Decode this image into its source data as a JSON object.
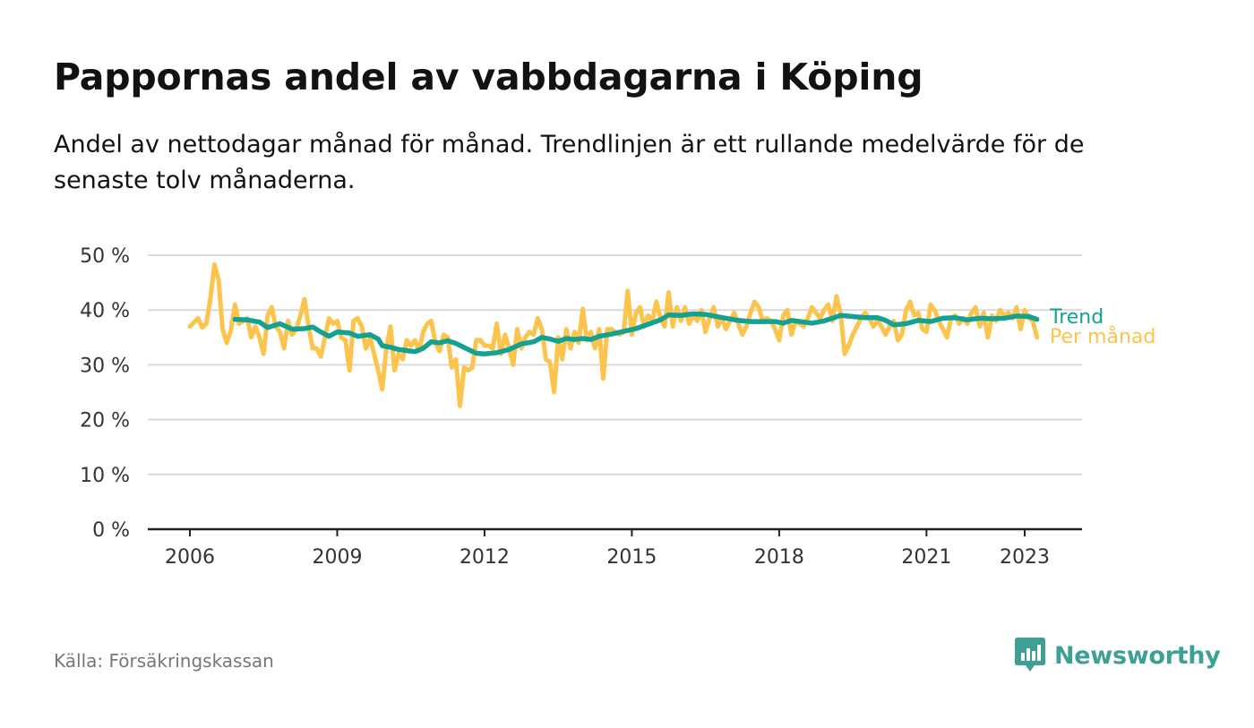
{
  "title": "Pappornas andel av vabbdagarna i Köping",
  "subtitle": "Andel av nettodagar månad för månad. Trendlinjen är ett rullande medelvärde för de senaste tolv månaderna.",
  "source": "Källa: Försäkringskassan",
  "brand": "Newsworthy",
  "colors": {
    "monthly": "#fcc44c",
    "trend": "#15a192",
    "grid": "#d9d9d9",
    "axis": "#222222",
    "brand": "#3e9f94"
  },
  "chart_data": {
    "type": "line",
    "title": "Pappornas andel av vabbdagarna i Köping",
    "xlabel": "",
    "ylabel": "",
    "ylim": [
      0,
      50
    ],
    "yticks": [
      0,
      10,
      20,
      30,
      40,
      50
    ],
    "ytick_labels": [
      "0 %",
      "10 %",
      "20 %",
      "30 %",
      "40 %",
      "50 %"
    ],
    "xlim": [
      "2005-10",
      "2024-02"
    ],
    "xticks": [
      "2006-01",
      "2009-01",
      "2012-01",
      "2015-01",
      "2018-01",
      "2021-01",
      "2023-01"
    ],
    "xtick_labels": [
      "2006",
      "2009",
      "2012",
      "2015",
      "2018",
      "2021",
      "2023"
    ],
    "grid": true,
    "legend": "right-end labels",
    "series": [
      {
        "name": "Per månad",
        "color": "#fcc44c",
        "points": [
          [
            "2006-01",
            37
          ],
          [
            "2006-03",
            38.5
          ],
          [
            "2006-04",
            36.8
          ],
          [
            "2006-05",
            37.5
          ],
          [
            "2006-06",
            42
          ],
          [
            "2006-07",
            48.3
          ],
          [
            "2006-08",
            45.5
          ],
          [
            "2006-09",
            36.5
          ],
          [
            "2006-10",
            34
          ],
          [
            "2006-11",
            36.2
          ],
          [
            "2006-12",
            41
          ],
          [
            "2007-01",
            37.5
          ],
          [
            "2007-03",
            38.5
          ],
          [
            "2007-04",
            35
          ],
          [
            "2007-05",
            37
          ],
          [
            "2007-06",
            35
          ],
          [
            "2007-07",
            32
          ],
          [
            "2007-08",
            39
          ],
          [
            "2007-09",
            40.5
          ],
          [
            "2007-10",
            37
          ],
          [
            "2007-11",
            36
          ],
          [
            "2007-12",
            33
          ],
          [
            "2008-01",
            38
          ],
          [
            "2008-02",
            35.5
          ],
          [
            "2008-03",
            36.5
          ],
          [
            "2008-04",
            39
          ],
          [
            "2008-05",
            42
          ],
          [
            "2008-06",
            37
          ],
          [
            "2008-07",
            33
          ],
          [
            "2008-08",
            33
          ],
          [
            "2008-09",
            31.5
          ],
          [
            "2008-10",
            35
          ],
          [
            "2008-11",
            38.5
          ],
          [
            "2008-12",
            37.5
          ],
          [
            "2009-01",
            38
          ],
          [
            "2009-02",
            35
          ],
          [
            "2009-03",
            34.5
          ],
          [
            "2009-04",
            29
          ],
          [
            "2009-05",
            38
          ],
          [
            "2009-06",
            38.5
          ],
          [
            "2009-07",
            37
          ],
          [
            "2009-08",
            33
          ],
          [
            "2009-09",
            35
          ],
          [
            "2009-10",
            32
          ],
          [
            "2009-11",
            29
          ],
          [
            "2009-12",
            25.5
          ],
          [
            "2010-01",
            33
          ],
          [
            "2010-02",
            37
          ],
          [
            "2010-03",
            29
          ],
          [
            "2010-04",
            32
          ],
          [
            "2010-05",
            31
          ],
          [
            "2010-06",
            34.5
          ],
          [
            "2010-07",
            33.5
          ],
          [
            "2010-08",
            34.5
          ],
          [
            "2010-09",
            32.5
          ],
          [
            "2010-10",
            36
          ],
          [
            "2010-11",
            37.5
          ],
          [
            "2010-12",
            38
          ],
          [
            "2011-01",
            34
          ],
          [
            "2011-02",
            32.5
          ],
          [
            "2011-03",
            35.5
          ],
          [
            "2011-04",
            35
          ],
          [
            "2011-05",
            29.5
          ],
          [
            "2011-06",
            31
          ],
          [
            "2011-07",
            22.5
          ],
          [
            "2011-08",
            29.5
          ],
          [
            "2011-09",
            29
          ],
          [
            "2011-10",
            29.5
          ],
          [
            "2011-11",
            34.5
          ],
          [
            "2011-12",
            34.5
          ],
          [
            "2012-01",
            33.5
          ],
          [
            "2012-02",
            33.5
          ],
          [
            "2012-03",
            33
          ],
          [
            "2012-04",
            37.5
          ],
          [
            "2012-05",
            32
          ],
          [
            "2012-06",
            35.5
          ],
          [
            "2012-07",
            33
          ],
          [
            "2012-08",
            30
          ],
          [
            "2012-09",
            36.5
          ],
          [
            "2012-10",
            33
          ],
          [
            "2012-11",
            35
          ],
          [
            "2012-12",
            36
          ],
          [
            "2013-01",
            35.5
          ],
          [
            "2013-02",
            38.5
          ],
          [
            "2013-03",
            36.5
          ],
          [
            "2013-04",
            31
          ],
          [
            "2013-05",
            30.5
          ],
          [
            "2013-06",
            25
          ],
          [
            "2013-07",
            35
          ],
          [
            "2013-08",
            31
          ],
          [
            "2013-09",
            36.5
          ],
          [
            "2013-10",
            33
          ],
          [
            "2013-11",
            36
          ],
          [
            "2013-12",
            34
          ],
          [
            "2014-01",
            40.2
          ],
          [
            "2014-02",
            34.5
          ],
          [
            "2014-03",
            36
          ],
          [
            "2014-04",
            33
          ],
          [
            "2014-05",
            36.5
          ],
          [
            "2014-06",
            27.5
          ],
          [
            "2014-07",
            36.5
          ],
          [
            "2014-08",
            36.5
          ],
          [
            "2014-09",
            36
          ],
          [
            "2014-10",
            35.5
          ],
          [
            "2014-11",
            36
          ],
          [
            "2014-12",
            43.5
          ],
          [
            "2015-01",
            35.5
          ],
          [
            "2015-02",
            39.5
          ],
          [
            "2015-03",
            40.5
          ],
          [
            "2015-04",
            37
          ],
          [
            "2015-05",
            39
          ],
          [
            "2015-06",
            38
          ],
          [
            "2015-07",
            41.5
          ],
          [
            "2015-08",
            38.5
          ],
          [
            "2015-09",
            37
          ],
          [
            "2015-10",
            43.2
          ],
          [
            "2015-11",
            37
          ],
          [
            "2015-12",
            40.5
          ],
          [
            "2016-01",
            38
          ],
          [
            "2016-02",
            40.5
          ],
          [
            "2016-03",
            37.5
          ],
          [
            "2016-04",
            39
          ],
          [
            "2016-05",
            38
          ],
          [
            "2016-06",
            40
          ],
          [
            "2016-07",
            36
          ],
          [
            "2016-08",
            38.5
          ],
          [
            "2016-09",
            40.5
          ],
          [
            "2016-10",
            37
          ],
          [
            "2016-11",
            38.5
          ],
          [
            "2016-12",
            36.5
          ],
          [
            "2017-01",
            38
          ],
          [
            "2017-02",
            39.5
          ],
          [
            "2017-03",
            37.5
          ],
          [
            "2017-04",
            35.5
          ],
          [
            "2017-05",
            37
          ],
          [
            "2017-06",
            39.5
          ],
          [
            "2017-07",
            41.5
          ],
          [
            "2017-08",
            40.5
          ],
          [
            "2017-09",
            38
          ],
          [
            "2017-10",
            38.5
          ],
          [
            "2017-11",
            38
          ],
          [
            "2017-12",
            36.5
          ],
          [
            "2018-01",
            34.5
          ],
          [
            "2018-02",
            39
          ],
          [
            "2018-03",
            40
          ],
          [
            "2018-04",
            35.5
          ],
          [
            "2018-05",
            38
          ],
          [
            "2018-06",
            37.5
          ],
          [
            "2018-07",
            37
          ],
          [
            "2018-08",
            38.5
          ],
          [
            "2018-09",
            40.5
          ],
          [
            "2018-10",
            39.5
          ],
          [
            "2018-11",
            38.5
          ],
          [
            "2018-12",
            40
          ],
          [
            "2019-01",
            41
          ],
          [
            "2019-02",
            38
          ],
          [
            "2019-03",
            42.5
          ],
          [
            "2019-04",
            39.5
          ],
          [
            "2019-05",
            32
          ],
          [
            "2019-06",
            33.5
          ],
          [
            "2019-07",
            35.5
          ],
          [
            "2019-08",
            37
          ],
          [
            "2019-09",
            38.5
          ],
          [
            "2019-10",
            39.5
          ],
          [
            "2019-11",
            38.5
          ],
          [
            "2019-12",
            37
          ],
          [
            "2020-01",
            38
          ],
          [
            "2020-02",
            37
          ],
          [
            "2020-03",
            35.5
          ],
          [
            "2020-04",
            37
          ],
          [
            "2020-05",
            38
          ],
          [
            "2020-06",
            34.5
          ],
          [
            "2020-07",
            35.5
          ],
          [
            "2020-08",
            40
          ],
          [
            "2020-09",
            41.5
          ],
          [
            "2020-10",
            39
          ],
          [
            "2020-11",
            39.5
          ],
          [
            "2020-12",
            36.5
          ],
          [
            "2021-01",
            36
          ],
          [
            "2021-02",
            41
          ],
          [
            "2021-03",
            40
          ],
          [
            "2021-04",
            38
          ],
          [
            "2021-05",
            36.5
          ],
          [
            "2021-06",
            35
          ],
          [
            "2021-07",
            38.5
          ],
          [
            "2021-08",
            39
          ],
          [
            "2021-09",
            37.5
          ],
          [
            "2021-10",
            38.5
          ],
          [
            "2021-11",
            37.5
          ],
          [
            "2021-12",
            39.5
          ],
          [
            "2022-01",
            40.5
          ],
          [
            "2022-02",
            37
          ],
          [
            "2022-03",
            39.5
          ],
          [
            "2022-04",
            35
          ],
          [
            "2022-05",
            39
          ],
          [
            "2022-06",
            38
          ],
          [
            "2022-07",
            40
          ],
          [
            "2022-08",
            39
          ],
          [
            "2022-09",
            39.5
          ],
          [
            "2022-10",
            38.5
          ],
          [
            "2022-11",
            40.5
          ],
          [
            "2022-12",
            36.5
          ],
          [
            "2023-01",
            40
          ],
          [
            "2023-02",
            38.5
          ],
          [
            "2023-03",
            38
          ],
          [
            "2023-04",
            35
          ]
        ]
      },
      {
        "name": "Trend",
        "color": "#15a192",
        "points": [
          [
            "2006-12",
            38.3
          ],
          [
            "2007-03",
            38.2
          ],
          [
            "2007-06",
            37.8
          ],
          [
            "2007-08",
            36.8
          ],
          [
            "2007-11",
            37.5
          ],
          [
            "2008-02",
            36.5
          ],
          [
            "2008-05",
            36.6
          ],
          [
            "2008-07",
            36.9
          ],
          [
            "2008-09",
            36
          ],
          [
            "2008-11",
            35.2
          ],
          [
            "2009-01",
            36
          ],
          [
            "2009-04",
            35.8
          ],
          [
            "2009-06",
            35.2
          ],
          [
            "2009-09",
            35.5
          ],
          [
            "2009-11",
            34.7
          ],
          [
            "2009-12",
            33.5
          ],
          [
            "2010-02",
            33.2
          ],
          [
            "2010-04",
            32.8
          ],
          [
            "2010-06",
            32.6
          ],
          [
            "2010-08",
            32.4
          ],
          [
            "2010-10",
            33
          ],
          [
            "2010-12",
            34.2
          ],
          [
            "2011-02",
            34
          ],
          [
            "2011-04",
            34.4
          ],
          [
            "2011-06",
            33.9
          ],
          [
            "2011-09",
            32.8
          ],
          [
            "2011-11",
            32.1
          ],
          [
            "2012-01",
            32
          ],
          [
            "2012-04",
            32.2
          ],
          [
            "2012-07",
            32.8
          ],
          [
            "2012-10",
            33.8
          ],
          [
            "2013-01",
            34.2
          ],
          [
            "2013-03",
            35
          ],
          [
            "2013-05",
            34.7
          ],
          [
            "2013-07",
            34.3
          ],
          [
            "2013-09",
            34.8
          ],
          [
            "2013-11",
            34.6
          ],
          [
            "2014-01",
            34.8
          ],
          [
            "2014-03",
            34.6
          ],
          [
            "2014-05",
            35.2
          ],
          [
            "2014-08",
            35.6
          ],
          [
            "2014-11",
            36.1
          ],
          [
            "2015-02",
            36.6
          ],
          [
            "2015-05",
            37.4
          ],
          [
            "2015-08",
            38.2
          ],
          [
            "2015-10",
            39.1
          ],
          [
            "2016-01",
            39
          ],
          [
            "2016-04",
            39.3
          ],
          [
            "2016-07",
            39.2
          ],
          [
            "2016-09",
            38.9
          ],
          [
            "2016-12",
            38.5
          ],
          [
            "2017-03",
            38.1
          ],
          [
            "2017-06",
            37.9
          ],
          [
            "2017-09",
            37.9
          ],
          [
            "2017-12",
            37.9
          ],
          [
            "2018-02",
            37.6
          ],
          [
            "2018-04",
            38.1
          ],
          [
            "2018-07",
            37.8
          ],
          [
            "2018-09",
            37.6
          ],
          [
            "2018-12",
            38
          ],
          [
            "2019-02",
            38.5
          ],
          [
            "2019-04",
            39
          ],
          [
            "2019-07",
            38.8
          ],
          [
            "2019-10",
            38.6
          ],
          [
            "2020-01",
            38.6
          ],
          [
            "2020-03",
            38.1
          ],
          [
            "2020-05",
            37.3
          ],
          [
            "2020-08",
            37.5
          ],
          [
            "2020-11",
            38.1
          ],
          [
            "2021-02",
            37.9
          ],
          [
            "2021-05",
            38.5
          ],
          [
            "2021-08",
            38.6
          ],
          [
            "2021-11",
            38.2
          ],
          [
            "2022-02",
            38.5
          ],
          [
            "2022-05",
            38.4
          ],
          [
            "2022-08",
            38.5
          ],
          [
            "2022-11",
            38.9
          ],
          [
            "2023-02",
            38.8
          ],
          [
            "2023-04",
            38.3
          ]
        ]
      }
    ]
  }
}
